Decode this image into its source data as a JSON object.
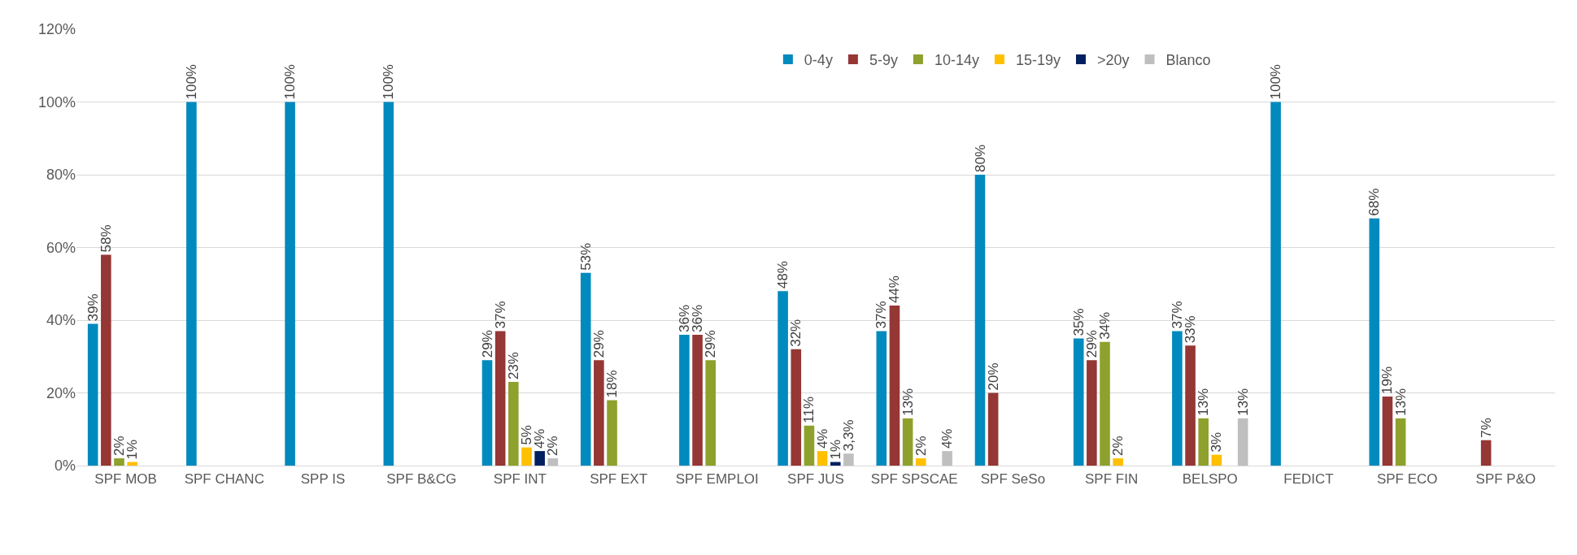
{
  "chart_data": {
    "type": "bar",
    "categories": [
      "SPF MOB",
      "SPF CHANC",
      "SPP IS",
      "SPF B&CG",
      "SPF INT",
      "SPF EXT",
      "SPF EMPLOI",
      "SPF JUS",
      "SPF SPSCAE",
      "SPF SeSo",
      "SPF FIN",
      "BELSPO",
      "FEDICT",
      "SPF ECO",
      "SPF P&O"
    ],
    "series": [
      {
        "name": "0-4y",
        "color": "#008abd",
        "values": [
          39,
          100,
          100,
          100,
          29,
          53,
          36,
          48,
          37,
          80,
          35,
          37,
          100,
          68,
          null
        ],
        "value_labels": [
          "39%",
          "100%",
          "100%",
          "100%",
          "29%",
          "53%",
          "36%",
          "48%",
          "37%",
          "80%",
          "35%",
          "37%",
          "100%",
          "68%",
          null
        ]
      },
      {
        "name": "5-9y",
        "color": "#953735",
        "values": [
          58,
          null,
          null,
          null,
          37,
          29,
          36,
          32,
          44,
          20,
          29,
          33,
          null,
          19,
          7
        ],
        "value_labels": [
          "58%",
          null,
          null,
          null,
          "37%",
          "29%",
          "36%",
          "32%",
          "44%",
          "20%",
          "29%",
          "33%",
          null,
          "19%",
          "7%"
        ]
      },
      {
        "name": "10-14y",
        "color": "#8ea12c",
        "values": [
          2,
          null,
          null,
          null,
          23,
          18,
          29,
          11,
          13,
          null,
          34,
          13,
          null,
          13,
          null
        ],
        "value_labels": [
          "2%",
          null,
          null,
          null,
          "23%",
          "18%",
          "29%",
          "11%",
          "13%",
          null,
          "34%",
          "13%",
          null,
          "13%",
          null
        ]
      },
      {
        "name": "15-19y",
        "color": "#ffc000",
        "values": [
          1,
          null,
          null,
          null,
          5,
          null,
          null,
          4,
          2,
          null,
          2,
          3,
          null,
          null,
          null
        ],
        "value_labels": [
          "1%",
          null,
          null,
          null,
          "5%",
          null,
          null,
          "4%",
          "2%",
          null,
          "2%",
          "3%",
          null,
          null,
          null
        ]
      },
      {
        "name": ">20y",
        "color": "#002060",
        "values": [
          null,
          null,
          null,
          null,
          4,
          null,
          null,
          1,
          null,
          null,
          null,
          null,
          null,
          null,
          null
        ],
        "value_labels": [
          null,
          null,
          null,
          null,
          "4%",
          null,
          null,
          "1%",
          null,
          null,
          null,
          null,
          null,
          null,
          null
        ]
      },
      {
        "name": "Blanco",
        "color": "#bfbfbf",
        "values": [
          null,
          null,
          null,
          null,
          2,
          null,
          null,
          3.3,
          4,
          null,
          null,
          13,
          null,
          null,
          null
        ],
        "value_labels": [
          null,
          null,
          null,
          null,
          "2%",
          null,
          null,
          "3,3%",
          "4%",
          null,
          null,
          "13%",
          null,
          null,
          null
        ]
      }
    ],
    "ylim": [
      0,
      120
    ],
    "yticks": [
      {
        "value": 0,
        "label": "0%"
      },
      {
        "value": 20,
        "label": "20%"
      },
      {
        "value": 40,
        "label": "40%"
      },
      {
        "value": 60,
        "label": "60%"
      },
      {
        "value": 80,
        "label": "80%"
      },
      {
        "value": 100,
        "label": "100%"
      },
      {
        "value": 120,
        "label": "120%"
      }
    ],
    "grid": "y",
    "legend": "top right",
    "data_labels": false
  }
}
